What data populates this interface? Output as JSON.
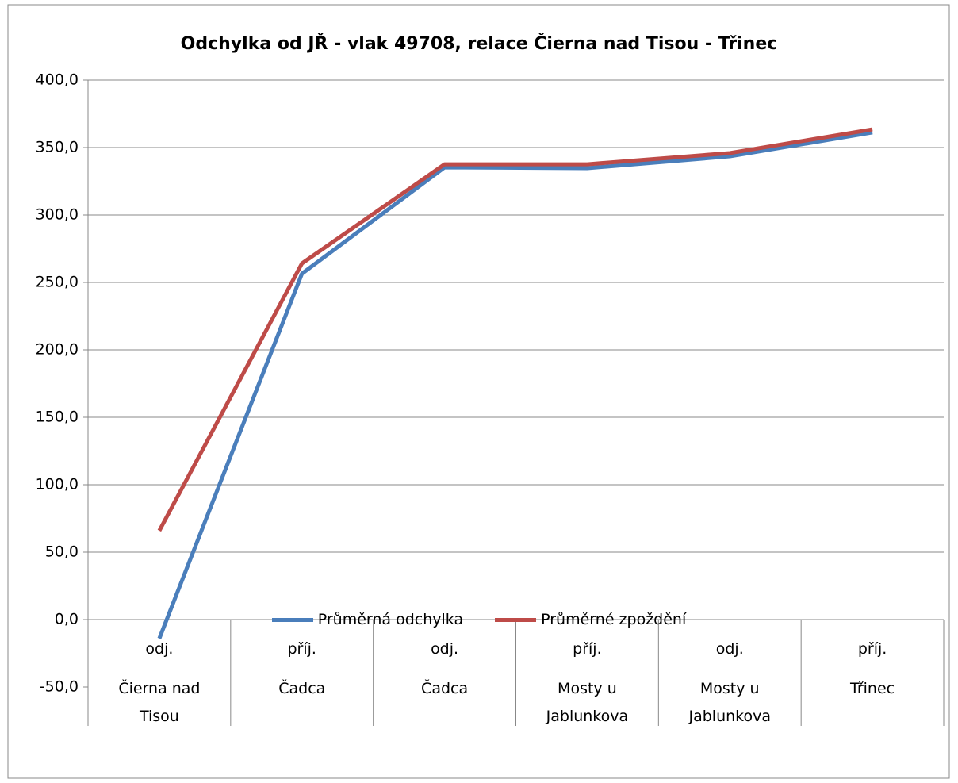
{
  "chart_data": {
    "type": "line",
    "title": "Odchylka od JŘ - vlak 49708, relace Čierna nad Tisou - Třinec",
    "categories": [
      [
        "odj.",
        "Čierna nad Tisou"
      ],
      [
        "příj.",
        "Čadca"
      ],
      [
        "odj.",
        "Čadca"
      ],
      [
        "příj.",
        "Mosty u Jablunkova"
      ],
      [
        "odj.",
        "Mosty u Jablunkova"
      ],
      [
        "příj.",
        "Třinec"
      ]
    ],
    "series": [
      {
        "name": "Průměrná odchylka",
        "color": "#4a7ebb",
        "values": [
          -14,
          256.5,
          335.3,
          334.7,
          343.5,
          361.2
        ]
      },
      {
        "name": "Průměrné zpoždění",
        "color": "#be4b48",
        "values": [
          65.9,
          264.1,
          337.6,
          337.6,
          345.9,
          363.5
        ]
      }
    ],
    "ylim": [
      -50,
      400
    ],
    "yticks": [
      {
        "value": -50,
        "label": "-50,0"
      },
      {
        "value": 0,
        "label": "0,0"
      },
      {
        "value": 50,
        "label": "50,0"
      },
      {
        "value": 100,
        "label": "100,0"
      },
      {
        "value": 150,
        "label": "150,0"
      },
      {
        "value": 200,
        "label": "200,0"
      },
      {
        "value": 250,
        "label": "250,0"
      },
      {
        "value": 300,
        "label": "300,0"
      },
      {
        "value": 350,
        "label": "350,0"
      },
      {
        "value": 400,
        "label": "400,0"
      }
    ],
    "grid": true,
    "legend": "bottom"
  }
}
